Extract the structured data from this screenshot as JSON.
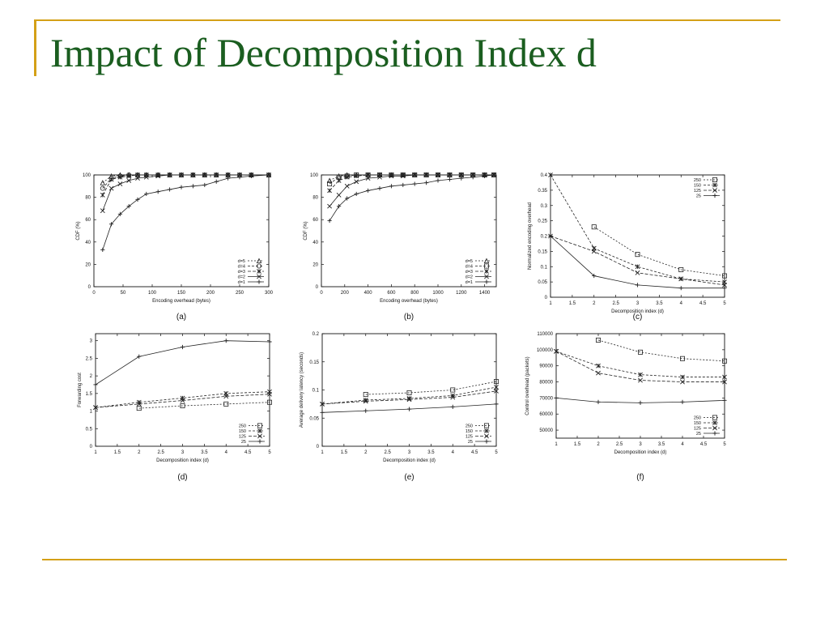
{
  "slide": {
    "title": "Impact of Decomposition Index d"
  },
  "chart_data": [
    {
      "id": "a",
      "type": "line",
      "panel_label": "(a)",
      "xlabel": "Encoding overhead (bytes)",
      "ylabel": "CDF (%)",
      "xlim": [
        0,
        300
      ],
      "ylim": [
        0,
        100
      ],
      "xticks": [
        0,
        50,
        100,
        150,
        200,
        250,
        300
      ],
      "yticks": [
        0,
        20,
        40,
        60,
        80,
        100
      ],
      "legend_position": "bottom-right",
      "series": [
        {
          "name": "d=5",
          "marker": "triangle",
          "dash": "2,2",
          "x": [
            15,
            30,
            45,
            60,
            75,
            90,
            110,
            130,
            150,
            170,
            190,
            210,
            230,
            250,
            270,
            300
          ],
          "y": [
            93,
            99,
            100,
            100,
            100,
            100,
            100,
            100,
            100,
            100,
            100,
            100,
            100,
            100,
            100,
            100
          ]
        },
        {
          "name": "d=4",
          "marker": "circle",
          "dash": "3,2",
          "x": [
            15,
            30,
            45,
            60,
            75,
            90,
            110,
            130,
            150,
            170,
            190,
            210,
            230,
            250,
            270,
            300
          ],
          "y": [
            88,
            97,
            99,
            100,
            100,
            100,
            100,
            100,
            100,
            100,
            100,
            100,
            100,
            100,
            100,
            100
          ]
        },
        {
          "name": "d=3",
          "marker": "star",
          "dash": "4,2",
          "x": [
            15,
            30,
            45,
            60,
            75,
            90,
            110,
            130,
            150,
            170,
            190,
            210,
            230,
            250,
            270,
            300
          ],
          "y": [
            82,
            96,
            98,
            99,
            100,
            100,
            100,
            100,
            100,
            100,
            100,
            100,
            100,
            100,
            100,
            100
          ]
        },
        {
          "name": "d=2",
          "marker": "cross",
          "dash": "",
          "x": [
            15,
            30,
            45,
            60,
            75,
            90,
            110,
            130,
            150,
            170,
            190,
            210,
            230,
            250,
            270,
            300
          ],
          "y": [
            68,
            88,
            92,
            95,
            97,
            98,
            99,
            100,
            100,
            100,
            100,
            100,
            100,
            100,
            100,
            100
          ]
        },
        {
          "name": "d=1",
          "marker": "plus",
          "dash": "",
          "x": [
            15,
            30,
            45,
            60,
            75,
            90,
            110,
            130,
            150,
            170,
            190,
            210,
            230,
            250,
            270,
            300
          ],
          "y": [
            33,
            56,
            65,
            72,
            78,
            83,
            85,
            87,
            89,
            90,
            91,
            94,
            97,
            98,
            99,
            100
          ]
        }
      ]
    },
    {
      "id": "b",
      "type": "line",
      "panel_label": "(b)",
      "xlabel": "Encoding overhead (bytes)",
      "ylabel": "CDF (%)",
      "xlim": [
        0,
        1500
      ],
      "ylim": [
        0,
        100
      ],
      "xticks": [
        0,
        200,
        400,
        600,
        800,
        1000,
        1200,
        1400
      ],
      "yticks": [
        0,
        20,
        40,
        60,
        80,
        100
      ],
      "legend_position": "bottom-right",
      "series": [
        {
          "name": "d=5",
          "marker": "triangle",
          "dash": "2,2",
          "x": [
            70,
            150,
            220,
            300,
            400,
            500,
            600,
            700,
            800,
            900,
            1000,
            1100,
            1200,
            1300,
            1400,
            1480
          ],
          "y": [
            95,
            99,
            100,
            100,
            100,
            100,
            100,
            100,
            100,
            100,
            100,
            100,
            100,
            100,
            100,
            100
          ]
        },
        {
          "name": "d=4",
          "marker": "square",
          "dash": "3,2",
          "x": [
            70,
            150,
            220,
            300,
            400,
            500,
            600,
            700,
            800,
            900,
            1000,
            1100,
            1200,
            1300,
            1400,
            1480
          ],
          "y": [
            92,
            98,
            99,
            100,
            100,
            100,
            100,
            100,
            100,
            100,
            100,
            100,
            100,
            100,
            100,
            100
          ]
        },
        {
          "name": "d=3",
          "marker": "star",
          "dash": "4,2",
          "x": [
            70,
            150,
            220,
            300,
            400,
            500,
            600,
            700,
            800,
            900,
            1000,
            1100,
            1200,
            1300,
            1400,
            1480
          ],
          "y": [
            86,
            95,
            98,
            99,
            100,
            100,
            100,
            100,
            100,
            100,
            100,
            100,
            100,
            100,
            100,
            100
          ]
        },
        {
          "name": "d=2",
          "marker": "cross",
          "dash": "",
          "x": [
            70,
            150,
            220,
            300,
            400,
            500,
            600,
            700,
            800,
            900,
            1000,
            1100,
            1200,
            1300,
            1400,
            1480
          ],
          "y": [
            72,
            82,
            90,
            94,
            97,
            98,
            99,
            99,
            100,
            100,
            100,
            100,
            100,
            100,
            100,
            100
          ]
        },
        {
          "name": "d=1",
          "marker": "plus",
          "dash": "",
          "x": [
            70,
            150,
            220,
            300,
            400,
            500,
            600,
            700,
            800,
            900,
            1000,
            1100,
            1200,
            1300,
            1400,
            1480
          ],
          "y": [
            59,
            72,
            79,
            83,
            86,
            88,
            90,
            91,
            92,
            93,
            95,
            96,
            97,
            98,
            99,
            100
          ]
        }
      ]
    },
    {
      "id": "c",
      "type": "line",
      "panel_label": "(c)",
      "xlabel": "Decomposition index (d)",
      "ylabel": "Normalized encoding overhead",
      "xlim": [
        1,
        5
      ],
      "ylim": [
        0,
        0.4
      ],
      "xticks": [
        1,
        1.5,
        2,
        2.5,
        3,
        3.5,
        4,
        4.5,
        5
      ],
      "yticks": [
        0,
        0.05,
        0.1,
        0.15,
        0.2,
        0.25,
        0.3,
        0.35,
        0.4
      ],
      "legend_position": "top-right",
      "series": [
        {
          "name": "250",
          "marker": "square",
          "dash": "2,2",
          "x": [
            2,
            3,
            4,
            5
          ],
          "y": [
            0.23,
            0.14,
            0.09,
            0.07
          ]
        },
        {
          "name": "150",
          "marker": "star",
          "dash": "3,2",
          "x": [
            1,
            2,
            3,
            4,
            5
          ],
          "y": [
            0.4,
            0.16,
            0.1,
            0.06,
            0.05
          ]
        },
        {
          "name": "125",
          "marker": "cross",
          "dash": "4,2",
          "x": [
            1,
            2,
            3,
            4,
            5
          ],
          "y": [
            0.2,
            0.15,
            0.08,
            0.06,
            0.04
          ]
        },
        {
          "name": "25",
          "marker": "plus",
          "dash": "",
          "x": [
            1,
            2,
            3,
            4,
            5
          ],
          "y": [
            0.2,
            0.07,
            0.04,
            0.03,
            0.03
          ]
        }
      ]
    },
    {
      "id": "d",
      "type": "line",
      "panel_label": "(d)",
      "xlabel": "Decomposition index (d)",
      "ylabel": "Forwarding cost",
      "xlim": [
        1,
        5
      ],
      "ylim": [
        0,
        3.2
      ],
      "xticks": [
        1,
        1.5,
        2,
        2.5,
        3,
        3.5,
        4,
        4.5,
        5
      ],
      "yticks": [
        0,
        0.5,
        1,
        1.5,
        2,
        2.5,
        3
      ],
      "legend_position": "bottom-right",
      "series": [
        {
          "name": "250",
          "marker": "square",
          "dash": "2,2",
          "x": [
            2,
            3,
            4,
            5
          ],
          "y": [
            1.08,
            1.15,
            1.2,
            1.25
          ]
        },
        {
          "name": "150",
          "marker": "star",
          "dash": "3,2",
          "x": [
            1,
            2,
            3,
            4,
            5
          ],
          "y": [
            1.1,
            1.25,
            1.37,
            1.5,
            1.55
          ]
        },
        {
          "name": "125",
          "marker": "cross",
          "dash": "4,2",
          "x": [
            1,
            2,
            3,
            4,
            5
          ],
          "y": [
            1.1,
            1.2,
            1.3,
            1.42,
            1.48
          ]
        },
        {
          "name": "25",
          "marker": "plus",
          "dash": "",
          "x": [
            1,
            2,
            3,
            4,
            5
          ],
          "y": [
            1.75,
            2.55,
            2.82,
            3.0,
            2.97
          ]
        }
      ]
    },
    {
      "id": "e",
      "type": "line",
      "panel_label": "(e)",
      "xlabel": "Decomposition index (d)",
      "ylabel": "Average delivery latency (seconds)",
      "xlim": [
        1,
        5
      ],
      "ylim": [
        0,
        0.2
      ],
      "xticks": [
        1,
        1.5,
        2,
        2.5,
        3,
        3.5,
        4,
        4.5,
        5
      ],
      "yticks": [
        0,
        0.05,
        0.1,
        0.15,
        0.2
      ],
      "legend_position": "bottom-right",
      "series": [
        {
          "name": "250",
          "marker": "square",
          "dash": "2,2",
          "x": [
            2,
            3,
            4,
            5
          ],
          "y": [
            0.092,
            0.095,
            0.1,
            0.115
          ]
        },
        {
          "name": "150",
          "marker": "star",
          "dash": "3,2",
          "x": [
            1,
            2,
            3,
            4,
            5
          ],
          "y": [
            0.075,
            0.082,
            0.085,
            0.09,
            0.105
          ]
        },
        {
          "name": "125",
          "marker": "cross",
          "dash": "4,2",
          "x": [
            1,
            2,
            3,
            4,
            5
          ],
          "y": [
            0.075,
            0.08,
            0.083,
            0.087,
            0.098
          ]
        },
        {
          "name": "25",
          "marker": "plus",
          "dash": "",
          "x": [
            1,
            2,
            3,
            4,
            5
          ],
          "y": [
            0.06,
            0.063,
            0.066,
            0.07,
            0.075
          ]
        }
      ]
    },
    {
      "id": "f",
      "type": "line",
      "panel_label": "(f)",
      "xlabel": "Decomposition index (d)",
      "ylabel": "Control overhead (packets)",
      "xlim": [
        1,
        5
      ],
      "ylim": [
        45000,
        110000
      ],
      "xticks": [
        1,
        1.5,
        2,
        2.5,
        3,
        3.5,
        4,
        4.5,
        5
      ],
      "yticks": [
        50000,
        60000,
        70000,
        80000,
        90000,
        100000,
        110000
      ],
      "legend_position": "bottom-right",
      "series": [
        {
          "name": "250",
          "marker": "square",
          "dash": "2,2",
          "x": [
            2,
            3,
            4,
            5
          ],
          "y": [
            106000,
            98500,
            94500,
            93000
          ]
        },
        {
          "name": "150",
          "marker": "star",
          "dash": "3,2",
          "x": [
            1,
            2,
            3,
            4,
            5
          ],
          "y": [
            99000,
            90000,
            84500,
            83000,
            83000
          ]
        },
        {
          "name": "125",
          "marker": "cross",
          "dash": "4,2",
          "x": [
            1,
            2,
            3,
            4,
            5
          ],
          "y": [
            99000,
            85500,
            81000,
            80000,
            80000
          ]
        },
        {
          "name": "25",
          "marker": "plus",
          "dash": "",
          "x": [
            1,
            2,
            3,
            4,
            5
          ],
          "y": [
            70000,
            67500,
            67000,
            67500,
            68500
          ]
        }
      ]
    }
  ]
}
